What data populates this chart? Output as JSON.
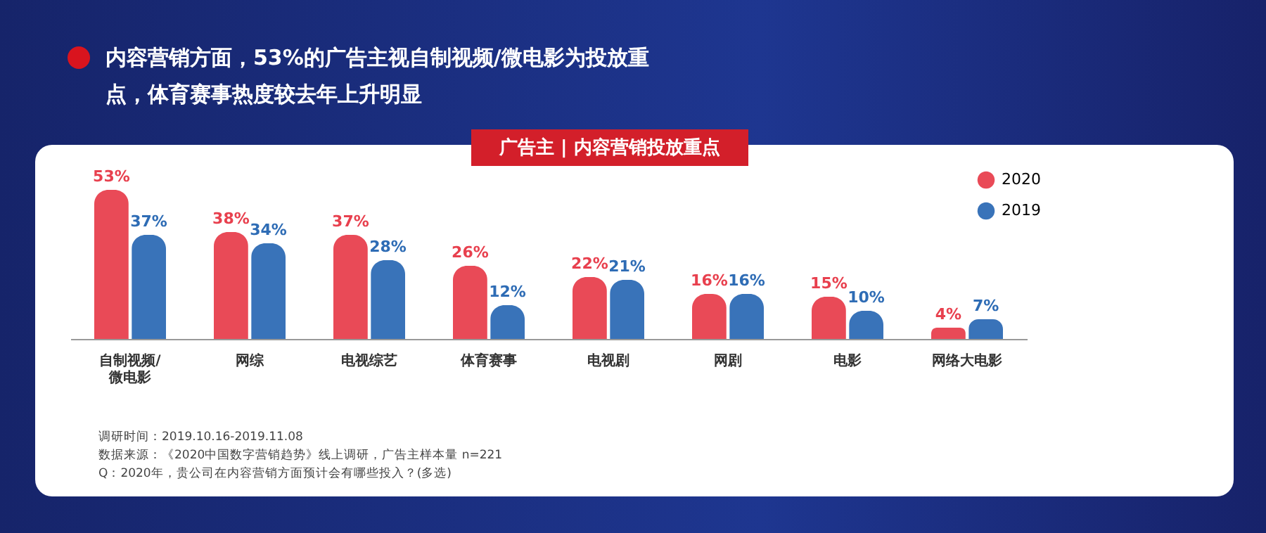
{
  "chart_data": {
    "type": "bar",
    "title": "内容营销方面，53%的广告主视自制视频/微电影为投放重点，体育赛事热度较去年上升明显",
    "subtitle": "广告主 | 内容营销投放重点",
    "categories": [
      "自制视频/微电影",
      "网综",
      "电视综艺",
      "体育赛事",
      "电视剧",
      "网剧",
      "电影",
      "网络大电影"
    ],
    "series": [
      {
        "name": "2020",
        "color": "#e8404e",
        "values": [
          53,
          38,
          37,
          26,
          22,
          16,
          15,
          4
        ],
        "value_labels": [
          "53%",
          "38%",
          "37%",
          "26%",
          "22%",
          "16%",
          "15%",
          "4%"
        ]
      },
      {
        "name": "2019",
        "color": "#2e6cb5",
        "values": [
          37,
          34,
          28,
          12,
          21,
          16,
          10,
          7
        ],
        "value_labels": [
          "37%",
          "34%",
          "28%",
          "12%",
          "21%",
          "16%",
          "10%",
          "7%"
        ]
      }
    ],
    "legend": "top right",
    "grid": false,
    "annotations": [
      "调研时间：2019.10.16-2019.11.08",
      "数据来源：《2020中国数字营销趋势》线上调研，广告主样本量 n=221",
      "Q：2020年，贵公司在内容营销方面预计会有哪些投入？(多选)"
    ]
  }
}
